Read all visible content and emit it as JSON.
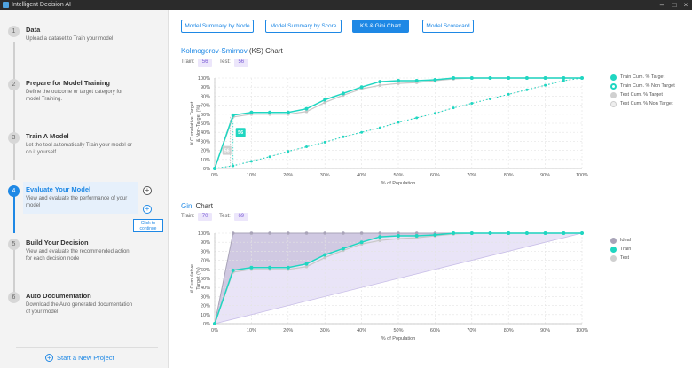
{
  "app": {
    "title": "Intelligent Decision AI"
  },
  "steps": [
    {
      "num": "1",
      "title": "Data",
      "desc": "Upload a dataset to Train your model"
    },
    {
      "num": "2",
      "title": "Prepare for Model Training",
      "desc": "Define the outcome or target category for model Training."
    },
    {
      "num": "3",
      "title": "Train A Model",
      "desc": "Let the tool automatically Train your model or do it yourself"
    },
    {
      "num": "4",
      "title": "Evaluate Your Model",
      "desc": "View and evaluate the performance of your model"
    },
    {
      "num": "5",
      "title": "Build Your Decision",
      "desc": "View and evaluate the recommended action for each decision node"
    },
    {
      "num": "6",
      "title": "Auto Documentation",
      "desc": "Download the Auto generated documentation of your model"
    }
  ],
  "tooltip": "Click to continue",
  "new_project": "Start a New Project",
  "tabs": [
    "Model Summary by Node",
    "Model Summary by Score",
    "KS & Gini Chart",
    "Model Scorecard"
  ],
  "ks": {
    "title_hi": "Kolmogorov-Smirnov",
    "title_rest": " (KS) Chart",
    "train_label": "Train:",
    "train_value": "56",
    "test_label": "Test:",
    "test_value": "56",
    "legend": [
      "Train Cum. % Target",
      "Train Cum. % Non Target",
      "Test Cum. % Target",
      "Test Cum. % Non Target"
    ]
  },
  "gini": {
    "title_hi": "Gini",
    "title_rest": " Chart",
    "train_label": "Train:",
    "train_value": "70",
    "test_label": "Test:",
    "test_value": "69",
    "legend": [
      "Ideal",
      "Train",
      "Test"
    ]
  },
  "colors": {
    "accent": "#1e88e5",
    "teal": "#1fd6c1",
    "grey": "#c8c8c8",
    "ideal": "#a9a4b8",
    "purple": "#7a5bd6"
  },
  "chart_data": [
    {
      "type": "line",
      "x": [
        0,
        5,
        10,
        15,
        20,
        25,
        30,
        35,
        40,
        45,
        50,
        55,
        60,
        65,
        70,
        75,
        80,
        85,
        90,
        95,
        100
      ],
      "xlabel": "% of Population",
      "ylabel": "# Cumulative Target & Non-Target (%)",
      "xlim": [
        0,
        100
      ],
      "ylim": [
        0,
        100
      ],
      "series": [
        {
          "name": "Train Cum. % Target",
          "values": [
            0,
            59,
            62,
            62,
            62,
            66,
            76,
            83,
            90,
            96,
            97,
            97,
            98,
            100,
            100,
            100,
            100,
            100,
            100,
            100,
            100
          ]
        },
        {
          "name": "Train Cum. % Non Target",
          "values": [
            0,
            3,
            8,
            13,
            19,
            24,
            29,
            35,
            40,
            45,
            51,
            56,
            61,
            67,
            72,
            77,
            82,
            87,
            92,
            97,
            100
          ]
        },
        {
          "name": "Test Cum. % Target",
          "values": [
            0,
            57,
            60,
            60,
            60,
            63,
            73,
            81,
            88,
            92,
            94,
            95,
            97,
            99,
            100,
            100,
            100,
            100,
            100,
            100,
            100
          ]
        },
        {
          "name": "Test Cum. % Non Target",
          "values": [
            0,
            3,
            8,
            13,
            19,
            24,
            29,
            35,
            40,
            45,
            51,
            56,
            61,
            67,
            72,
            77,
            82,
            87,
            92,
            97,
            100
          ]
        }
      ],
      "annotations": [
        "56",
        "56"
      ],
      "grid": true,
      "legend": "right"
    },
    {
      "type": "line",
      "x": [
        0,
        5,
        10,
        15,
        20,
        25,
        30,
        35,
        40,
        45,
        50,
        55,
        60,
        65,
        70,
        75,
        80,
        85,
        90,
        95,
        100
      ],
      "xlabel": "% of Population",
      "ylabel": "# Cumulative Target (%)",
      "xlim": [
        0,
        100
      ],
      "ylim": [
        0,
        100
      ],
      "series": [
        {
          "name": "Ideal",
          "values": [
            0,
            100,
            100,
            100,
            100,
            100,
            100,
            100,
            100,
            100,
            100,
            100,
            100,
            100,
            100,
            100,
            100,
            100,
            100,
            100,
            100
          ]
        },
        {
          "name": "Train",
          "values": [
            0,
            59,
            62,
            62,
            62,
            66,
            76,
            83,
            90,
            96,
            97,
            97,
            98,
            100,
            100,
            100,
            100,
            100,
            100,
            100,
            100
          ]
        },
        {
          "name": "Test",
          "values": [
            0,
            57,
            60,
            60,
            60,
            63,
            73,
            81,
            88,
            92,
            94,
            95,
            97,
            99,
            100,
            100,
            100,
            100,
            100,
            100,
            100
          ]
        }
      ],
      "grid": true,
      "legend": "right"
    }
  ]
}
